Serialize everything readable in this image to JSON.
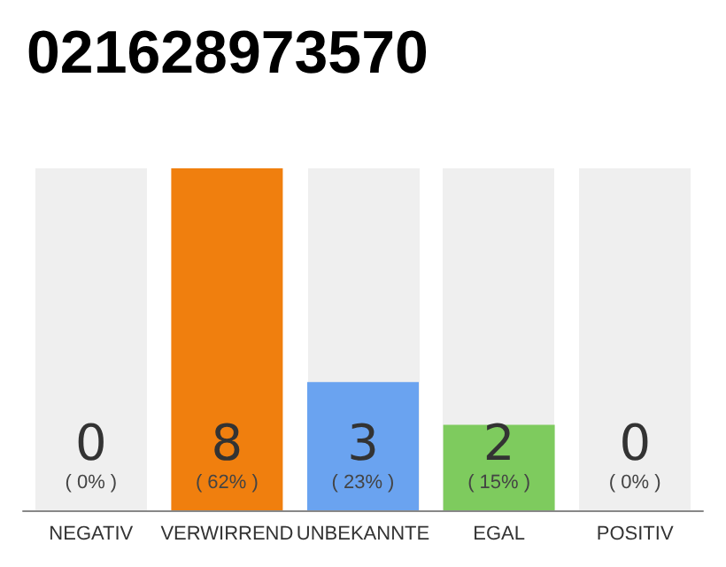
{
  "chart_data": {
    "type": "bar",
    "title": "021628973570",
    "categories": [
      "NEGATIV",
      "VERWIRREND",
      "UNBEKANNTE",
      "EGAL",
      "POSITIV"
    ],
    "values": [
      0,
      8,
      3,
      2,
      0
    ],
    "data_labels": true,
    "ylim": [
      0,
      8
    ],
    "colors": [
      "#f07f0e",
      "#f07f0e",
      "#6aa3f0",
      "#7ecb5e",
      "#7ecb5e"
    ],
    "annotations": [
      {
        "text": "( 0% )",
        "x": "NEGATIV",
        "y": 0
      },
      {
        "text": "( 62% )",
        "x": "VERWIRREND",
        "y": 0
      },
      {
        "text": "( 23% )",
        "x": "UNBEKANNTE",
        "y": 0
      },
      {
        "text": "( 15% )",
        "x": "EGAL",
        "y": 0
      },
      {
        "text": "( 0% )",
        "x": "POSITIV",
        "y": 0
      }
    ],
    "bands": [
      {
        "axis": "x",
        "from": "NEGATIV",
        "to": "NEGATIV",
        "color": "#efefef"
      },
      {
        "axis": "x",
        "from": "UNBEKANNTE",
        "to": "UNBEKANNTE",
        "color": "#efefef"
      },
      {
        "axis": "x",
        "from": "EGAL",
        "to": "EGAL",
        "color": "#efefef"
      },
      {
        "axis": "x",
        "from": "POSITIV",
        "to": "POSITIV",
        "color": "#efefef"
      }
    ],
    "tick_labels": "x"
  }
}
